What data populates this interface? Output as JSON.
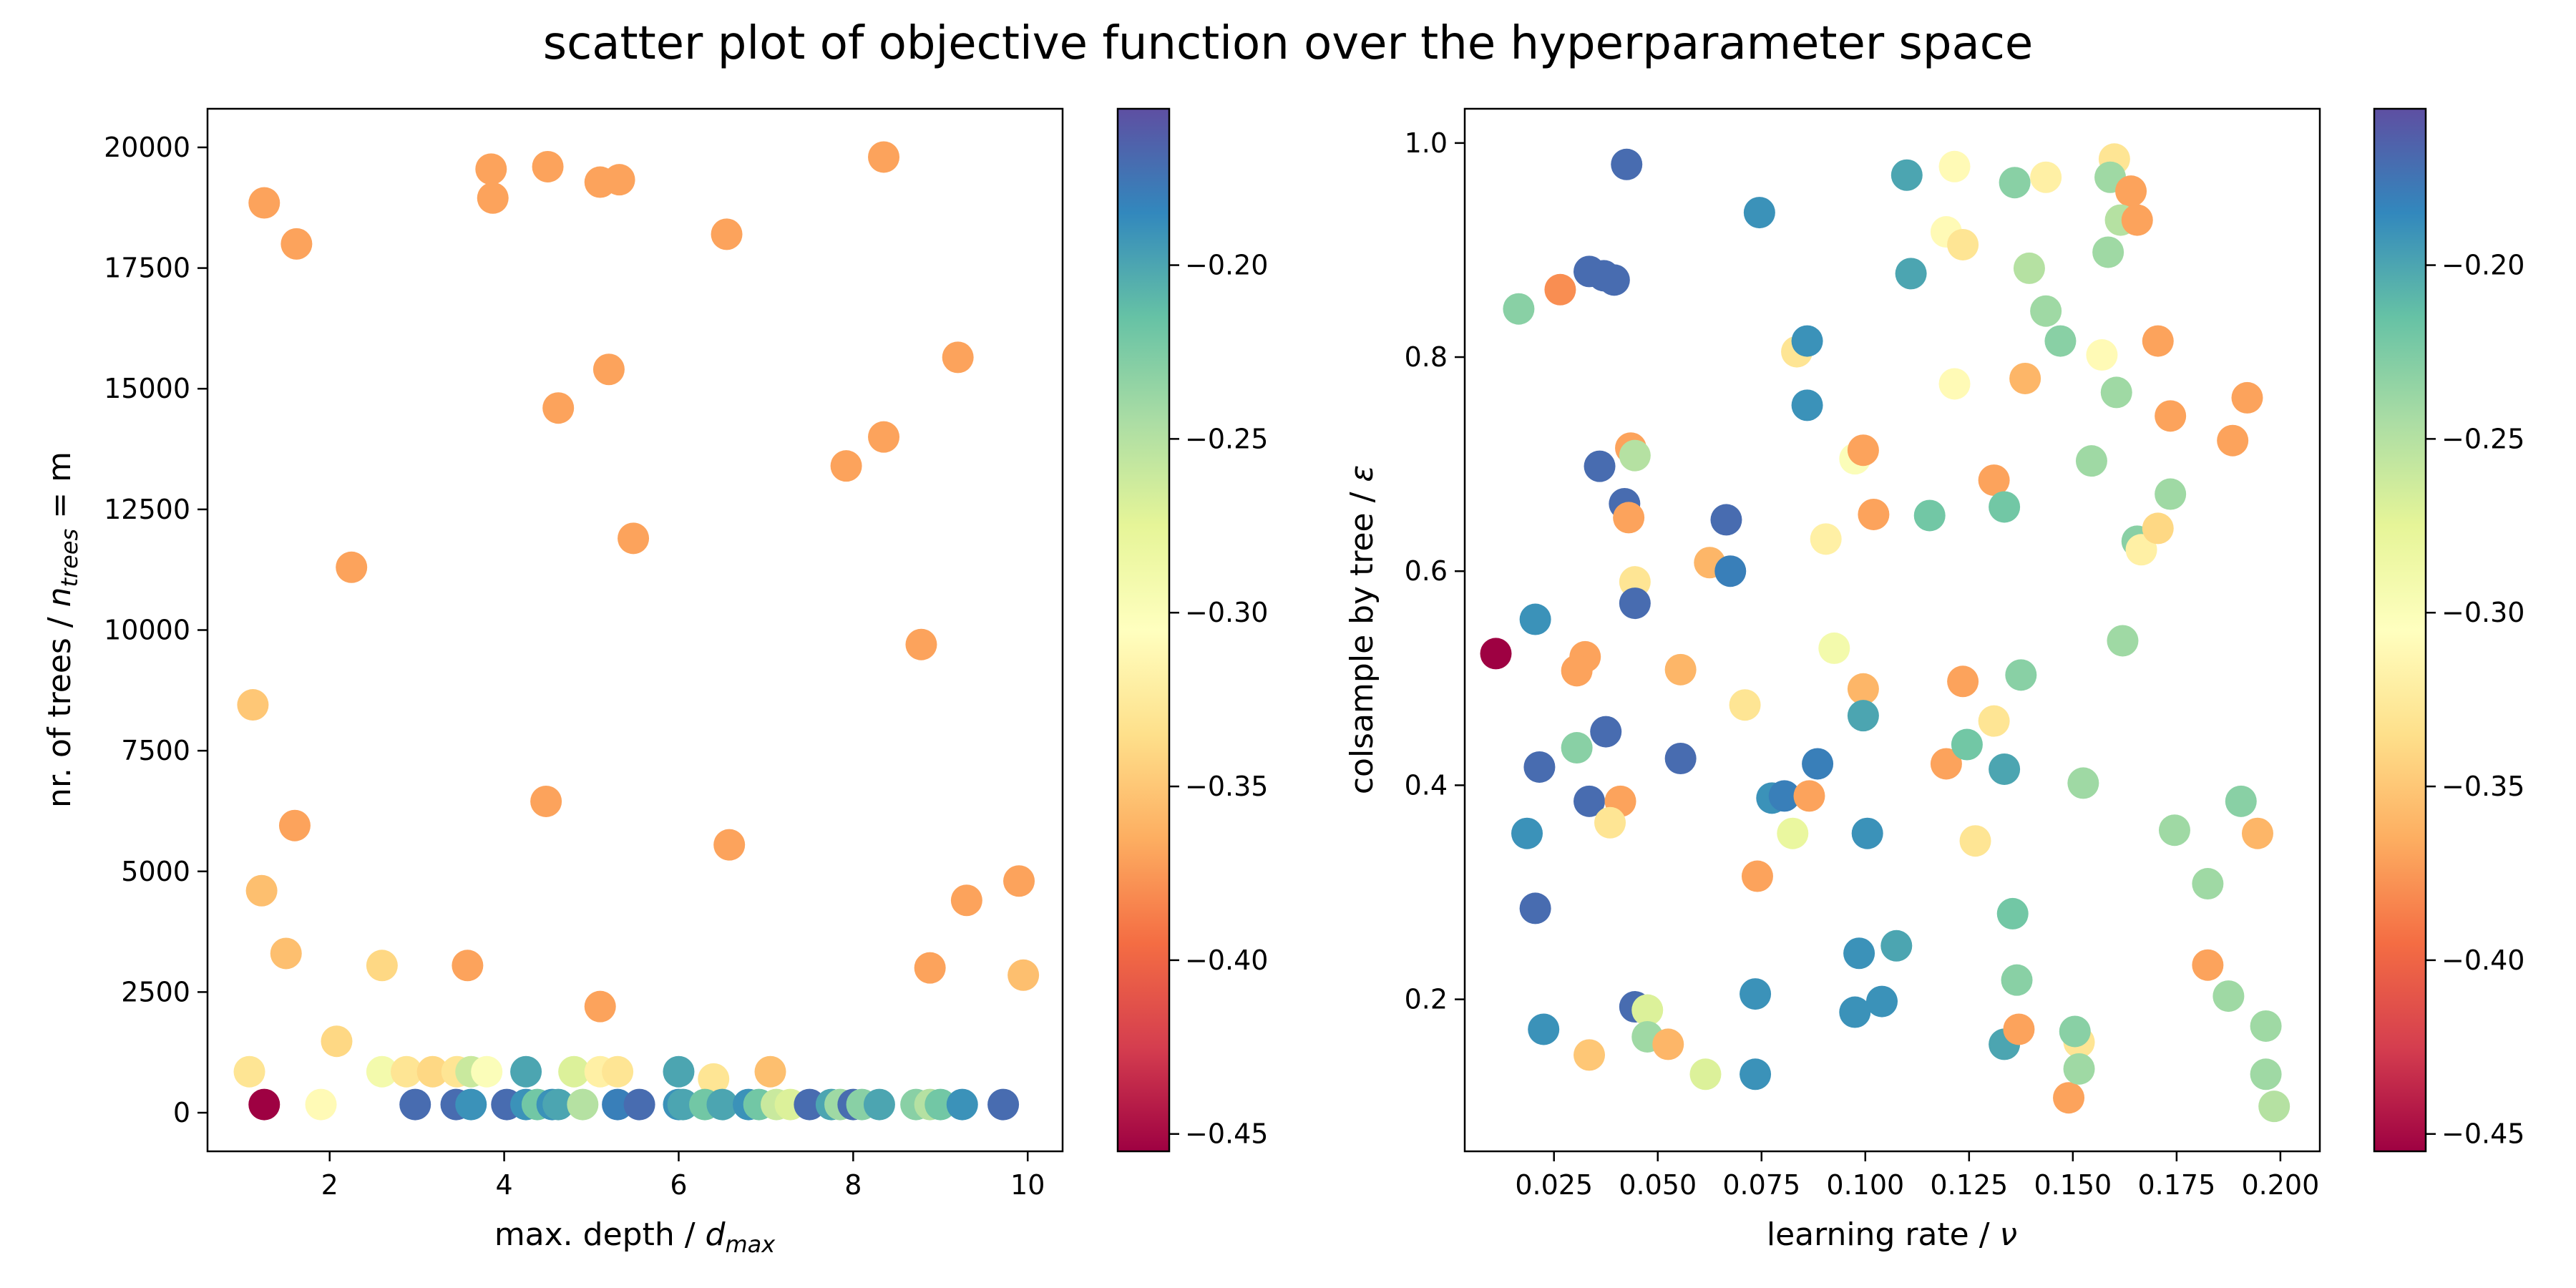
{
  "figure": {
    "title": "scatter plot of objective function over the hyperparameter space"
  },
  "chart_data": [
    {
      "type": "scatter",
      "xlabel": "max. depth / d_max",
      "ylabel": "nr. of trees / n_trees = m",
      "xlim": [
        0.6,
        10.4
      ],
      "ylim": [
        -800,
        20800
      ],
      "xticks": [
        2,
        4,
        6,
        8,
        10
      ],
      "yticks": [
        0,
        2500,
        5000,
        7500,
        10000,
        12500,
        15000,
        17500,
        20000
      ],
      "grid": false,
      "colormap": "Spectral",
      "colorbar": {
        "range": [
          -0.455,
          -0.155
        ],
        "ticks": [
          -0.45,
          -0.4,
          -0.35,
          -0.3,
          -0.25,
          -0.2
        ]
      },
      "points": [
        {
          "x": 1.25,
          "y": 18850,
          "c": -0.37
        },
        {
          "x": 1.62,
          "y": 18000,
          "c": -0.37
        },
        {
          "x": 3.85,
          "y": 19550,
          "c": -0.37
        },
        {
          "x": 3.87,
          "y": 18950,
          "c": -0.37
        },
        {
          "x": 4.5,
          "y": 19600,
          "c": -0.37
        },
        {
          "x": 5.1,
          "y": 19280,
          "c": -0.37
        },
        {
          "x": 5.32,
          "y": 19330,
          "c": -0.37
        },
        {
          "x": 8.35,
          "y": 19800,
          "c": -0.37
        },
        {
          "x": 6.55,
          "y": 18200,
          "c": -0.37
        },
        {
          "x": 5.2,
          "y": 15400,
          "c": -0.37
        },
        {
          "x": 9.2,
          "y": 15650,
          "c": -0.37
        },
        {
          "x": 4.62,
          "y": 14600,
          "c": -0.37
        },
        {
          "x": 8.35,
          "y": 14000,
          "c": -0.37
        },
        {
          "x": 7.92,
          "y": 13400,
          "c": -0.37
        },
        {
          "x": 5.48,
          "y": 11900,
          "c": -0.37
        },
        {
          "x": 2.25,
          "y": 11300,
          "c": -0.37
        },
        {
          "x": 8.78,
          "y": 9700,
          "c": -0.37
        },
        {
          "x": 1.12,
          "y": 8450,
          "c": -0.35
        },
        {
          "x": 4.48,
          "y": 6450,
          "c": -0.37
        },
        {
          "x": 1.6,
          "y": 5950,
          "c": -0.37
        },
        {
          "x": 6.58,
          "y": 5550,
          "c": -0.37
        },
        {
          "x": 1.22,
          "y": 4600,
          "c": -0.355
        },
        {
          "x": 9.9,
          "y": 4800,
          "c": -0.37
        },
        {
          "x": 9.3,
          "y": 4400,
          "c": -0.37
        },
        {
          "x": 1.5,
          "y": 3300,
          "c": -0.355
        },
        {
          "x": 2.6,
          "y": 3050,
          "c": -0.34
        },
        {
          "x": 3.58,
          "y": 3050,
          "c": -0.37
        },
        {
          "x": 8.88,
          "y": 3000,
          "c": -0.37
        },
        {
          "x": 9.95,
          "y": 2850,
          "c": -0.355
        },
        {
          "x": 5.1,
          "y": 2200,
          "c": -0.37
        },
        {
          "x": 2.08,
          "y": 1480,
          "c": -0.34
        },
        {
          "x": 1.08,
          "y": 850,
          "c": -0.33
        },
        {
          "x": 2.6,
          "y": 850,
          "c": -0.29
        },
        {
          "x": 2.88,
          "y": 850,
          "c": -0.33
        },
        {
          "x": 3.18,
          "y": 850,
          "c": -0.34
        },
        {
          "x": 3.46,
          "y": 850,
          "c": -0.33
        },
        {
          "x": 3.62,
          "y": 850,
          "c": -0.26
        },
        {
          "x": 3.8,
          "y": 850,
          "c": -0.3
        },
        {
          "x": 4.25,
          "y": 850,
          "c": -0.2
        },
        {
          "x": 4.8,
          "y": 850,
          "c": -0.27
        },
        {
          "x": 5.1,
          "y": 850,
          "c": -0.32
        },
        {
          "x": 5.3,
          "y": 850,
          "c": -0.33
        },
        {
          "x": 6.0,
          "y": 850,
          "c": -0.2
        },
        {
          "x": 6.4,
          "y": 700,
          "c": -0.33
        },
        {
          "x": 7.05,
          "y": 850,
          "c": -0.355
        },
        {
          "x": 1.25,
          "y": 170,
          "c": -0.455
        },
        {
          "x": 1.9,
          "y": 170,
          "c": -0.31
        },
        {
          "x": 2.98,
          "y": 170,
          "c": -0.17
        },
        {
          "x": 3.45,
          "y": 170,
          "c": -0.17
        },
        {
          "x": 3.62,
          "y": 170,
          "c": -0.19
        },
        {
          "x": 4.03,
          "y": 170,
          "c": -0.17
        },
        {
          "x": 4.25,
          "y": 170,
          "c": -0.19
        },
        {
          "x": 4.38,
          "y": 170,
          "c": -0.22
        },
        {
          "x": 4.55,
          "y": 170,
          "c": -0.19
        },
        {
          "x": 4.62,
          "y": 170,
          "c": -0.2
        },
        {
          "x": 4.9,
          "y": 170,
          "c": -0.25
        },
        {
          "x": 5.3,
          "y": 170,
          "c": -0.18
        },
        {
          "x": 5.55,
          "y": 170,
          "c": -0.17
        },
        {
          "x": 6.0,
          "y": 170,
          "c": -0.19
        },
        {
          "x": 6.05,
          "y": 170,
          "c": -0.2
        },
        {
          "x": 6.3,
          "y": 170,
          "c": -0.22
        },
        {
          "x": 6.5,
          "y": 170,
          "c": -0.2
        },
        {
          "x": 6.8,
          "y": 170,
          "c": -0.19
        },
        {
          "x": 6.92,
          "y": 170,
          "c": -0.22
        },
        {
          "x": 7.12,
          "y": 170,
          "c": -0.26
        },
        {
          "x": 7.28,
          "y": 170,
          "c": -0.27
        },
        {
          "x": 7.5,
          "y": 170,
          "c": -0.17
        },
        {
          "x": 7.75,
          "y": 170,
          "c": -0.2
        },
        {
          "x": 7.85,
          "y": 170,
          "c": -0.24
        },
        {
          "x": 8.0,
          "y": 170,
          "c": -0.17
        },
        {
          "x": 8.1,
          "y": 170,
          "c": -0.23
        },
        {
          "x": 8.3,
          "y": 170,
          "c": -0.2
        },
        {
          "x": 8.72,
          "y": 170,
          "c": -0.23
        },
        {
          "x": 8.88,
          "y": 170,
          "c": -0.25
        },
        {
          "x": 9.0,
          "y": 170,
          "c": -0.22
        },
        {
          "x": 9.25,
          "y": 170,
          "c": -0.19
        },
        {
          "x": 9.72,
          "y": 170,
          "c": -0.17
        }
      ]
    },
    {
      "type": "scatter",
      "xlabel": "learning rate / ν",
      "ylabel": "colsample by tree / ε",
      "xlim": [
        0.0035,
        0.2095
      ],
      "ylim": [
        0.058,
        1.032
      ],
      "xticks": [
        0.025,
        0.05,
        0.075,
        0.1,
        0.125,
        0.15,
        0.175,
        0.2
      ],
      "xticklabels": [
        "0.025",
        "0.050",
        "0.075",
        "0.100",
        "0.125",
        "0.150",
        "0.175",
        "0.200"
      ],
      "yticks": [
        0.2,
        0.4,
        0.6,
        0.8,
        1.0
      ],
      "yticklabels": [
        "0.2",
        "0.4",
        "0.6",
        "0.8",
        "1.0"
      ],
      "grid": false,
      "colormap": "Spectral",
      "colorbar": {
        "range": [
          -0.455,
          -0.155
        ],
        "ticks": [
          -0.45,
          -0.4,
          -0.35,
          -0.3,
          -0.25,
          -0.2
        ]
      },
      "points": [
        {
          "x": 0.0425,
          "y": 0.98,
          "c": -0.17
        },
        {
          "x": 0.0745,
          "y": 0.935,
          "c": -0.19
        },
        {
          "x": 0.11,
          "y": 0.97,
          "c": -0.2
        },
        {
          "x": 0.1215,
          "y": 0.978,
          "c": -0.31
        },
        {
          "x": 0.136,
          "y": 0.963,
          "c": -0.23
        },
        {
          "x": 0.1435,
          "y": 0.968,
          "c": -0.32
        },
        {
          "x": 0.16,
          "y": 0.985,
          "c": -0.33
        },
        {
          "x": 0.159,
          "y": 0.968,
          "c": -0.24
        },
        {
          "x": 0.164,
          "y": 0.955,
          "c": -0.37
        },
        {
          "x": 0.1615,
          "y": 0.928,
          "c": -0.25
        },
        {
          "x": 0.1655,
          "y": 0.928,
          "c": -0.37
        },
        {
          "x": 0.0165,
          "y": 0.845,
          "c": -0.23
        },
        {
          "x": 0.0265,
          "y": 0.863,
          "c": -0.38
        },
        {
          "x": 0.0335,
          "y": 0.88,
          "c": -0.17
        },
        {
          "x": 0.037,
          "y": 0.876,
          "c": -0.17
        },
        {
          "x": 0.0395,
          "y": 0.872,
          "c": -0.17
        },
        {
          "x": 0.111,
          "y": 0.878,
          "c": -0.2
        },
        {
          "x": 0.1195,
          "y": 0.917,
          "c": -0.31
        },
        {
          "x": 0.1235,
          "y": 0.905,
          "c": -0.33
        },
        {
          "x": 0.1395,
          "y": 0.883,
          "c": -0.25
        },
        {
          "x": 0.1435,
          "y": 0.843,
          "c": -0.24
        },
        {
          "x": 0.147,
          "y": 0.815,
          "c": -0.23
        },
        {
          "x": 0.1585,
          "y": 0.898,
          "c": -0.24
        },
        {
          "x": 0.0835,
          "y": 0.805,
          "c": -0.33
        },
        {
          "x": 0.086,
          "y": 0.815,
          "c": -0.19
        },
        {
          "x": 0.086,
          "y": 0.755,
          "c": -0.19
        },
        {
          "x": 0.1215,
          "y": 0.775,
          "c": -0.31
        },
        {
          "x": 0.1385,
          "y": 0.78,
          "c": -0.36
        },
        {
          "x": 0.157,
          "y": 0.802,
          "c": -0.31
        },
        {
          "x": 0.1605,
          "y": 0.767,
          "c": -0.24
        },
        {
          "x": 0.1705,
          "y": 0.815,
          "c": -0.37
        },
        {
          "x": 0.1735,
          "y": 0.745,
          "c": -0.37
        },
        {
          "x": 0.192,
          "y": 0.762,
          "c": -0.37
        },
        {
          "x": 0.036,
          "y": 0.698,
          "c": -0.17
        },
        {
          "x": 0.042,
          "y": 0.663,
          "c": -0.17
        },
        {
          "x": 0.0435,
          "y": 0.715,
          "c": -0.37
        },
        {
          "x": 0.0445,
          "y": 0.708,
          "c": -0.25
        },
        {
          "x": 0.043,
          "y": 0.65,
          "c": -0.37
        },
        {
          "x": 0.0665,
          "y": 0.648,
          "c": -0.17
        },
        {
          "x": 0.0975,
          "y": 0.705,
          "c": -0.3
        },
        {
          "x": 0.0995,
          "y": 0.713,
          "c": -0.37
        },
        {
          "x": 0.102,
          "y": 0.653,
          "c": -0.37
        },
        {
          "x": 0.1155,
          "y": 0.652,
          "c": -0.22
        },
        {
          "x": 0.131,
          "y": 0.685,
          "c": -0.37
        },
        {
          "x": 0.1335,
          "y": 0.66,
          "c": -0.22
        },
        {
          "x": 0.1545,
          "y": 0.703,
          "c": -0.24
        },
        {
          "x": 0.1655,
          "y": 0.628,
          "c": -0.23
        },
        {
          "x": 0.1665,
          "y": 0.62,
          "c": -0.32
        },
        {
          "x": 0.1705,
          "y": 0.64,
          "c": -0.34
        },
        {
          "x": 0.1735,
          "y": 0.672,
          "c": -0.24
        },
        {
          "x": 0.1885,
          "y": 0.722,
          "c": -0.37
        },
        {
          "x": 0.011,
          "y": 0.523,
          "c": -0.455
        },
        {
          "x": 0.0205,
          "y": 0.555,
          "c": -0.19
        },
        {
          "x": 0.0325,
          "y": 0.52,
          "c": -0.37
        },
        {
          "x": 0.0305,
          "y": 0.507,
          "c": -0.37
        },
        {
          "x": 0.0445,
          "y": 0.59,
          "c": -0.33
        },
        {
          "x": 0.0445,
          "y": 0.57,
          "c": -0.17
        },
        {
          "x": 0.0625,
          "y": 0.608,
          "c": -0.36
        },
        {
          "x": 0.0675,
          "y": 0.6,
          "c": -0.18
        },
        {
          "x": 0.0555,
          "y": 0.508,
          "c": -0.36
        },
        {
          "x": 0.0905,
          "y": 0.63,
          "c": -0.32
        },
        {
          "x": 0.0925,
          "y": 0.528,
          "c": -0.29
        },
        {
          "x": 0.0995,
          "y": 0.49,
          "c": -0.36
        },
        {
          "x": 0.1235,
          "y": 0.497,
          "c": -0.37
        },
        {
          "x": 0.1375,
          "y": 0.503,
          "c": -0.23
        },
        {
          "x": 0.162,
          "y": 0.535,
          "c": -0.24
        },
        {
          "x": 0.0215,
          "y": 0.417,
          "c": -0.17
        },
        {
          "x": 0.0305,
          "y": 0.435,
          "c": -0.23
        },
        {
          "x": 0.0375,
          "y": 0.45,
          "c": -0.17
        },
        {
          "x": 0.0335,
          "y": 0.385,
          "c": -0.17
        },
        {
          "x": 0.041,
          "y": 0.385,
          "c": -0.37
        },
        {
          "x": 0.0385,
          "y": 0.365,
          "c": -0.33
        },
        {
          "x": 0.0555,
          "y": 0.425,
          "c": -0.17
        },
        {
          "x": 0.071,
          "y": 0.475,
          "c": -0.33
        },
        {
          "x": 0.0775,
          "y": 0.388,
          "c": -0.19
        },
        {
          "x": 0.0805,
          "y": 0.39,
          "c": -0.18
        },
        {
          "x": 0.0865,
          "y": 0.39,
          "c": -0.37
        },
        {
          "x": 0.0885,
          "y": 0.42,
          "c": -0.18
        },
        {
          "x": 0.0825,
          "y": 0.355,
          "c": -0.28
        },
        {
          "x": 0.0995,
          "y": 0.465,
          "c": -0.2
        },
        {
          "x": 0.1005,
          "y": 0.355,
          "c": -0.19
        },
        {
          "x": 0.1195,
          "y": 0.42,
          "c": -0.37
        },
        {
          "x": 0.1245,
          "y": 0.438,
          "c": -0.22
        },
        {
          "x": 0.131,
          "y": 0.46,
          "c": -0.33
        },
        {
          "x": 0.1335,
          "y": 0.415,
          "c": -0.2
        },
        {
          "x": 0.1265,
          "y": 0.348,
          "c": -0.33
        },
        {
          "x": 0.1525,
          "y": 0.402,
          "c": -0.24
        },
        {
          "x": 0.1745,
          "y": 0.358,
          "c": -0.24
        },
        {
          "x": 0.1905,
          "y": 0.385,
          "c": -0.23
        },
        {
          "x": 0.1945,
          "y": 0.355,
          "c": -0.36
        },
        {
          "x": 0.0185,
          "y": 0.355,
          "c": -0.19
        },
        {
          "x": 0.0205,
          "y": 0.285,
          "c": -0.17
        },
        {
          "x": 0.074,
          "y": 0.315,
          "c": -0.37
        },
        {
          "x": 0.0225,
          "y": 0.172,
          "c": -0.19
        },
        {
          "x": 0.0335,
          "y": 0.148,
          "c": -0.35
        },
        {
          "x": 0.0445,
          "y": 0.193,
          "c": -0.17
        },
        {
          "x": 0.0475,
          "y": 0.19,
          "c": -0.27
        },
        {
          "x": 0.0475,
          "y": 0.165,
          "c": -0.24
        },
        {
          "x": 0.0525,
          "y": 0.158,
          "c": -0.36
        },
        {
          "x": 0.0615,
          "y": 0.13,
          "c": -0.27
        },
        {
          "x": 0.0735,
          "y": 0.205,
          "c": -0.19
        },
        {
          "x": 0.0735,
          "y": 0.13,
          "c": -0.19
        },
        {
          "x": 0.0975,
          "y": 0.188,
          "c": -0.19
        },
        {
          "x": 0.0985,
          "y": 0.243,
          "c": -0.19
        },
        {
          "x": 0.104,
          "y": 0.198,
          "c": -0.19
        },
        {
          "x": 0.1075,
          "y": 0.25,
          "c": -0.2
        },
        {
          "x": 0.1335,
          "y": 0.158,
          "c": -0.2
        },
        {
          "x": 0.1355,
          "y": 0.28,
          "c": -0.22
        },
        {
          "x": 0.1365,
          "y": 0.218,
          "c": -0.23
        },
        {
          "x": 0.137,
          "y": 0.172,
          "c": -0.37
        },
        {
          "x": 0.149,
          "y": 0.108,
          "c": -0.37
        },
        {
          "x": 0.1515,
          "y": 0.16,
          "c": -0.33
        },
        {
          "x": 0.1505,
          "y": 0.17,
          "c": -0.23
        },
        {
          "x": 0.1515,
          "y": 0.135,
          "c": -0.24
        },
        {
          "x": 0.1825,
          "y": 0.308,
          "c": -0.24
        },
        {
          "x": 0.1825,
          "y": 0.232,
          "c": -0.37
        },
        {
          "x": 0.1875,
          "y": 0.203,
          "c": -0.24
        },
        {
          "x": 0.1965,
          "y": 0.175,
          "c": -0.24
        },
        {
          "x": 0.1965,
          "y": 0.13,
          "c": -0.24
        },
        {
          "x": 0.1985,
          "y": 0.1,
          "c": -0.25
        }
      ]
    }
  ]
}
